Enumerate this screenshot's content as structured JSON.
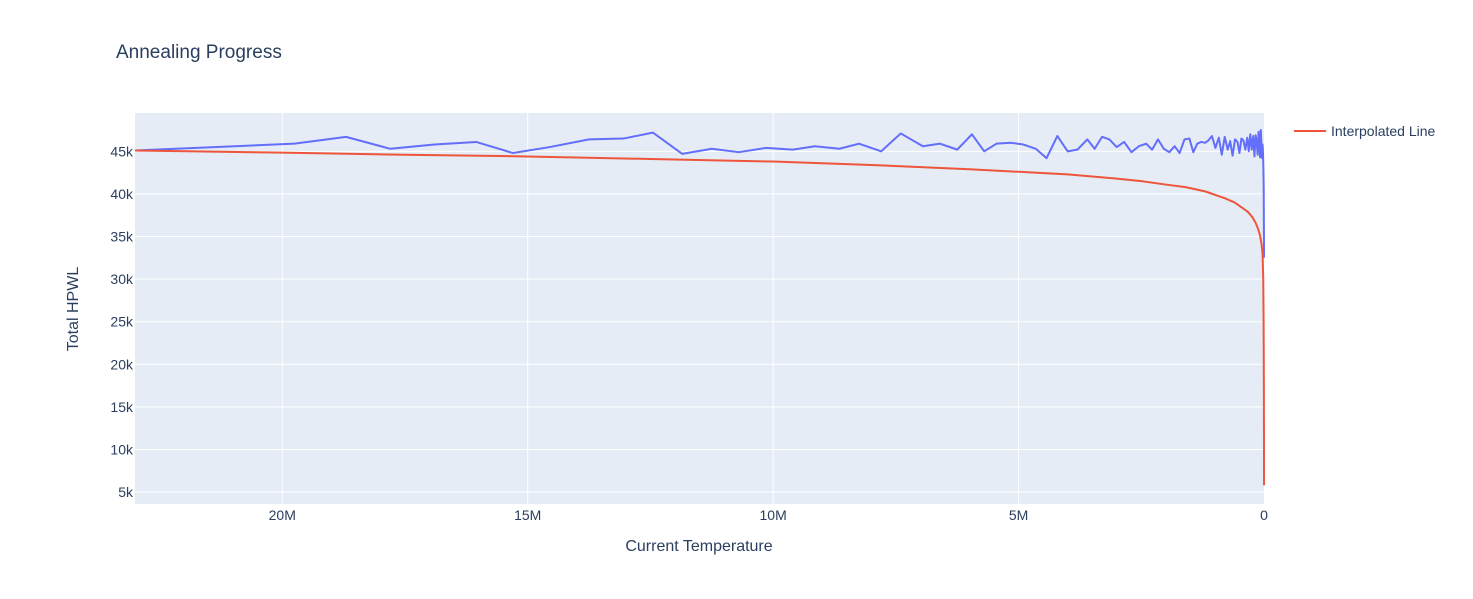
{
  "chart_data": {
    "type": "line",
    "title": "Annealing Progress",
    "xlabel": "Current Temperature",
    "ylabel": "Total HPWL",
    "xlim": [
      23000000,
      0
    ],
    "ylim": [
      3600,
      49500
    ],
    "x_reversed": true,
    "grid": true,
    "legend_position": "top-right",
    "x_ticks": [
      {
        "value": 20000000,
        "label": "20M"
      },
      {
        "value": 15000000,
        "label": "15M"
      },
      {
        "value": 10000000,
        "label": "10M"
      },
      {
        "value": 5000000,
        "label": "5M"
      },
      {
        "value": 0,
        "label": "0"
      }
    ],
    "y_ticks": [
      {
        "value": 5000,
        "label": "5k"
      },
      {
        "value": 10000,
        "label": "10k"
      },
      {
        "value": 15000,
        "label": "15k"
      },
      {
        "value": 20000,
        "label": "20k"
      },
      {
        "value": 25000,
        "label": "25k"
      },
      {
        "value": 30000,
        "label": "30k"
      },
      {
        "value": 35000,
        "label": "35k"
      },
      {
        "value": 40000,
        "label": "40k"
      },
      {
        "value": 45000,
        "label": "45k"
      }
    ],
    "series": [
      {
        "color": "#636efa",
        "show_in_legend": false,
        "x": [
          23000000,
          19750000,
          18700000,
          17800000,
          16900000,
          16050000,
          15300000,
          14550000,
          13750000,
          13050000,
          12450000,
          11850000,
          11250000,
          10700000,
          10150000,
          9600000,
          9150000,
          8650000,
          8250000,
          7800000,
          7400000,
          6950000,
          6600000,
          6250000,
          5950000,
          5700000,
          5450000,
          5150000,
          4900000,
          4650000,
          4430000,
          4210000,
          4000000,
          3800000,
          3600000,
          3450000,
          3300000,
          3150000,
          3000000,
          2850000,
          2700000,
          2550000,
          2400000,
          2280000,
          2160000,
          2040000,
          1930000,
          1820000,
          1720000,
          1620000,
          1520000,
          1440000,
          1360000,
          1280000,
          1200000,
          1130000,
          1060000,
          990000,
          920000,
          860000,
          800000,
          740000,
          690000,
          640000,
          590000,
          540000,
          500000,
          460000,
          420000,
          380000,
          340000,
          310000,
          280000,
          250000,
          220000,
          195000,
          170000,
          150000,
          130000,
          110000,
          95000,
          80000,
          65000,
          50000,
          40000,
          30000,
          20000,
          12000,
          6000,
          2000,
          500,
          0
        ],
        "y": [
          45100,
          45900,
          46700,
          45300,
          45800,
          46100,
          44800,
          45500,
          46400,
          46500,
          47200,
          44700,
          45300,
          44900,
          45400,
          45200,
          45600,
          45300,
          45900,
          45000,
          47100,
          45600,
          45900,
          45200,
          47000,
          45000,
          45900,
          46000,
          45800,
          45300,
          44200,
          46800,
          45000,
          45200,
          46400,
          45300,
          46700,
          46400,
          45500,
          46100,
          44900,
          45600,
          45900,
          45200,
          46400,
          45300,
          44900,
          45600,
          44800,
          46400,
          46500,
          44900,
          45900,
          46100,
          46000,
          46300,
          46800,
          45400,
          46600,
          44600,
          46700,
          45200,
          46200,
          44500,
          46400,
          46100,
          44800,
          46500,
          46300,
          45200,
          46600,
          45000,
          47000,
          45200,
          46800,
          44400,
          46900,
          46200,
          44600,
          47300,
          45900,
          44300,
          47500,
          45600,
          44200,
          45800,
          44800,
          43000,
          40500,
          36000,
          33500,
          32500
        ]
      },
      {
        "name": "Interpolated Line",
        "color": "#ef553b",
        "show_in_legend": true,
        "x": [
          23000000,
          20000000,
          17500000,
          15000000,
          12500000,
          10000000,
          8000000,
          6000000,
          5000000,
          4000000,
          3000000,
          2500000,
          2000000,
          1600000,
          1200000,
          1000000,
          800000,
          600000,
          450000,
          330000,
          240000,
          170000,
          120000,
          80000,
          50000,
          30000,
          15000,
          8000,
          3000,
          1000,
          0
        ],
        "y": [
          45100,
          44850,
          44600,
          44400,
          44100,
          43800,
          43400,
          42900,
          42600,
          42300,
          41800,
          41500,
          41100,
          40800,
          40300,
          39900,
          39500,
          39000,
          38400,
          37900,
          37300,
          36600,
          35900,
          35100,
          34100,
          33000,
          30000,
          25000,
          18000,
          12000,
          5800
        ]
      }
    ]
  }
}
